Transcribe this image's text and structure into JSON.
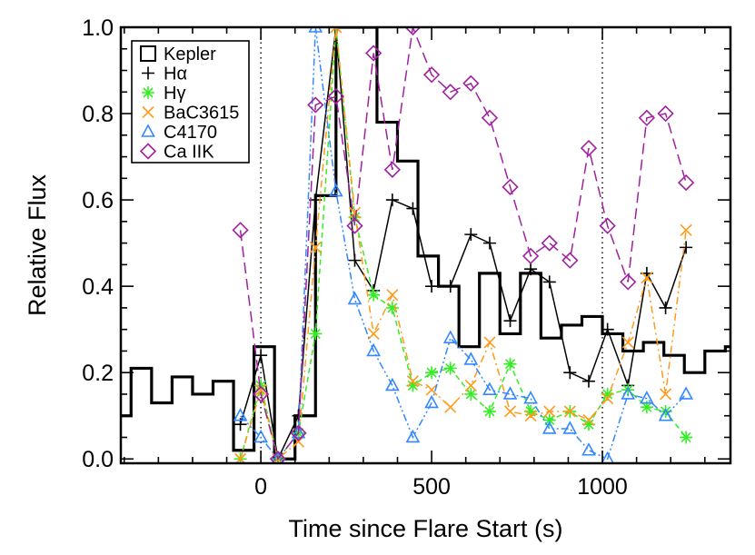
{
  "chart_data": {
    "type": "line",
    "xlabel": "Time since Flare Start (s)",
    "ylabel": "Relative Flux",
    "xlim": [
      -410,
      1375
    ],
    "ylim": [
      -0.01,
      1.0
    ],
    "x_ticks": [
      0,
      500,
      1000
    ],
    "x_tick_labels": [
      "0",
      "500",
      "1000"
    ],
    "y_ticks": [
      0.0,
      0.2,
      0.4,
      0.6,
      0.8,
      1.0
    ],
    "y_tick_labels": [
      "0.0",
      "0.2",
      "0.4",
      "0.6",
      "0.8",
      "1.0"
    ],
    "vlines": [
      0,
      1000
    ],
    "legend_position": "top-left",
    "series": [
      {
        "name": "Kepler",
        "style": "step",
        "color": "#000000",
        "x": [
          -410,
          -380,
          -320,
          -260,
          -200,
          -140,
          -80,
          -20,
          40,
          100,
          160,
          220,
          280,
          340,
          400,
          460,
          520,
          580,
          640,
          700,
          760,
          820,
          880,
          940,
          1000,
          1060,
          1120,
          1180,
          1240,
          1300,
          1360,
          1375
        ],
        "y": [
          0.1,
          0.21,
          0.13,
          0.19,
          0.15,
          0.18,
          0.02,
          0.26,
          0.0,
          0.1,
          0.61,
          1.0,
          1.0,
          0.78,
          0.69,
          0.47,
          0.4,
          0.26,
          0.43,
          0.29,
          0.43,
          0.28,
          0.31,
          0.33,
          0.29,
          0.25,
          0.27,
          0.24,
          0.2,
          0.25,
          0.26,
          0.26
        ]
      },
      {
        "name": "Hα",
        "label_text": "H",
        "label_symbol": "α",
        "marker": "plus",
        "line": "solid",
        "color": "#000000",
        "x": [
          -60,
          0,
          50,
          110,
          160,
          220,
          275,
          330,
          385,
          445,
          500,
          555,
          615,
          670,
          730,
          790,
          845,
          905,
          960,
          1015,
          1075,
          1130,
          1185,
          1245
        ],
        "y": [
          0.08,
          0.24,
          0.0,
          0.1,
          0.6,
          1.0,
          0.46,
          0.39,
          0.6,
          0.58,
          0.4,
          0.4,
          0.52,
          0.5,
          0.32,
          0.44,
          0.41,
          0.2,
          0.18,
          0.3,
          0.17,
          0.43,
          0.35,
          0.49
        ]
      },
      {
        "name": "Hγ",
        "label_text": "H",
        "label_symbol": "γ",
        "marker": "asterisk",
        "line": "dashed",
        "color": "#33ee22",
        "x": [
          -60,
          0,
          50,
          110,
          160,
          220,
          275,
          330,
          385,
          445,
          500,
          555,
          615,
          670,
          730,
          790,
          845,
          905,
          960,
          1015,
          1075,
          1130,
          1185,
          1245
        ],
        "y": [
          0.0,
          0.17,
          0.0,
          0.06,
          0.29,
          1.0,
          0.56,
          0.38,
          0.35,
          0.17,
          0.2,
          0.21,
          0.15,
          0.11,
          0.22,
          0.11,
          0.09,
          0.11,
          0.08,
          0.15,
          0.16,
          0.12,
          0.11,
          0.05
        ]
      },
      {
        "name": "BaC3615",
        "marker": "x",
        "line": "dashdot",
        "color": "#ff9a1a",
        "x": [
          -60,
          0,
          50,
          110,
          160,
          220,
          275,
          330,
          385,
          445,
          500,
          555,
          615,
          670,
          730,
          790,
          845,
          905,
          960,
          1015,
          1075,
          1130,
          1185,
          1245
        ],
        "y": [
          0.0,
          0.16,
          0.0,
          0.04,
          0.49,
          1.0,
          0.57,
          0.29,
          0.38,
          0.18,
          0.16,
          0.12,
          0.17,
          0.27,
          0.11,
          0.1,
          0.11,
          0.11,
          0.09,
          0.14,
          0.27,
          0.42,
          0.15,
          0.53
        ]
      },
      {
        "name": "C4170",
        "marker": "triangle",
        "line": "dashdotdot",
        "color": "#3388ff",
        "x": [
          -60,
          0,
          50,
          110,
          160,
          220,
          275,
          330,
          385,
          445,
          500,
          555,
          615,
          670,
          730,
          790,
          845,
          905,
          960,
          1015,
          1075,
          1130,
          1185,
          1245
        ],
        "y": [
          0.1,
          0.05,
          0.0,
          0.06,
          1.0,
          0.62,
          0.37,
          0.25,
          0.17,
          0.05,
          0.13,
          0.28,
          0.23,
          0.16,
          0.15,
          0.14,
          0.07,
          0.07,
          0.02,
          0.0,
          0.15,
          0.14,
          0.1,
          0.15
        ]
      },
      {
        "name": "Ca IIK",
        "marker": "diamond",
        "line": "longdash",
        "color": "#a020a0",
        "x": [
          -60,
          0,
          50,
          110,
          160,
          220,
          275,
          330,
          385,
          445,
          500,
          555,
          615,
          670,
          730,
          790,
          845,
          905,
          960,
          1015,
          1075,
          1130,
          1185,
          1245
        ],
        "y": [
          0.53,
          0.15,
          0.0,
          0.06,
          0.82,
          0.84,
          0.54,
          0.94,
          0.67,
          1.0,
          0.89,
          0.85,
          0.87,
          0.79,
          0.63,
          0.47,
          0.5,
          0.46,
          0.72,
          0.54,
          0.41,
          0.79,
          0.8,
          0.64
        ]
      }
    ]
  }
}
